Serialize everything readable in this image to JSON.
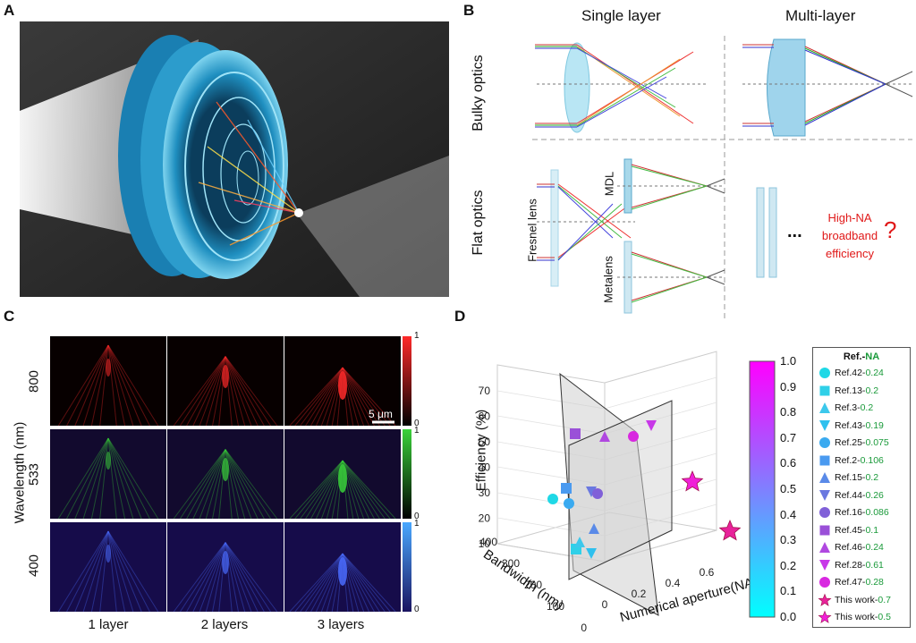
{
  "panels": {
    "a": "A",
    "b": "B",
    "c": "C",
    "d": "D"
  },
  "panel_b": {
    "col_single": "Single layer",
    "col_multi": "Multi-layer",
    "row_bulky": "Bulky optics",
    "row_flat": "Flat optics",
    "fresnel": "Fresnel lens",
    "mdl": "MDL",
    "metalens": "Metalens",
    "dots": "...",
    "question_lines": [
      "High-NA",
      "broadband",
      "efficiency"
    ],
    "question_mark": "?"
  },
  "panel_c": {
    "ylabel": "Wavelength (nm)",
    "rows": [
      "800",
      "533",
      "400"
    ],
    "cols": [
      "1 layer",
      "2 layers",
      "3 layers"
    ],
    "scalebar": "5 μm",
    "colorbar_max": "1",
    "colorbar_min": "0",
    "colors": {
      "800": "#ff2a2a",
      "533": "#3ad23a",
      "400": "#4a6cff"
    }
  },
  "chart_data": {
    "type": "scatter",
    "title": "",
    "xlabel": "Numerical aperture(NA)",
    "ylabel": "Efficiency (%)",
    "zlabel": "Bandwidth (nm)",
    "na_ticks": [
      "0",
      "0.2",
      "0.4",
      "0.6"
    ],
    "bw_ticks": [
      "0",
      "100",
      "200",
      "300",
      "400"
    ],
    "eff_ticks": [
      "10",
      "20",
      "30",
      "40",
      "50",
      "60",
      "70"
    ],
    "colorbar_ticks": [
      "0.0",
      "0.1",
      "0.2",
      "0.3",
      "0.4",
      "0.5",
      "0.6",
      "0.7",
      "0.8",
      "0.9",
      "1.0"
    ],
    "legend_title_ref": "Ref.",
    "legend_title_na": "NA",
    "series": [
      {
        "name": "Ref.42",
        "na": "0.24",
        "marker": "circle",
        "color": "#1fd8e6"
      },
      {
        "name": "Ref.13",
        "na": "0.2",
        "marker": "square",
        "color": "#2fd0e8"
      },
      {
        "name": "Ref.3",
        "na": "0.2",
        "marker": "triangle-up",
        "color": "#3cc8ec"
      },
      {
        "name": "Ref.43",
        "na": "0.19",
        "marker": "triangle-down",
        "color": "#2fc0ee"
      },
      {
        "name": "Ref.25",
        "na": "0.075",
        "marker": "circle",
        "color": "#3aaaf0"
      },
      {
        "name": "Ref.2",
        "na": "0.106",
        "marker": "square",
        "color": "#4a9af0"
      },
      {
        "name": "Ref.15",
        "na": "0.2",
        "marker": "triangle-up",
        "color": "#5a8ae8"
      },
      {
        "name": "Ref.44",
        "na": "0.26",
        "marker": "triangle-down",
        "color": "#6a78e0"
      },
      {
        "name": "Ref.16",
        "na": "0.086",
        "marker": "circle",
        "color": "#8060d8"
      },
      {
        "name": "Ref.45",
        "na": "0.1",
        "marker": "square",
        "color": "#9a50d8"
      },
      {
        "name": "Ref.46",
        "na": "0.24",
        "marker": "triangle-up",
        "color": "#b048e0"
      },
      {
        "name": "Ref.28",
        "na": "0.61",
        "marker": "triangle-down",
        "color": "#c838e8"
      },
      {
        "name": "Ref.47",
        "na": "0.28",
        "marker": "circle",
        "color": "#d828e0"
      },
      {
        "name": "This work",
        "na": "0.7",
        "marker": "star",
        "color": "#e8229a"
      },
      {
        "name": "This work",
        "na": "0.5",
        "marker": "star",
        "color": "#f020d8"
      }
    ]
  }
}
